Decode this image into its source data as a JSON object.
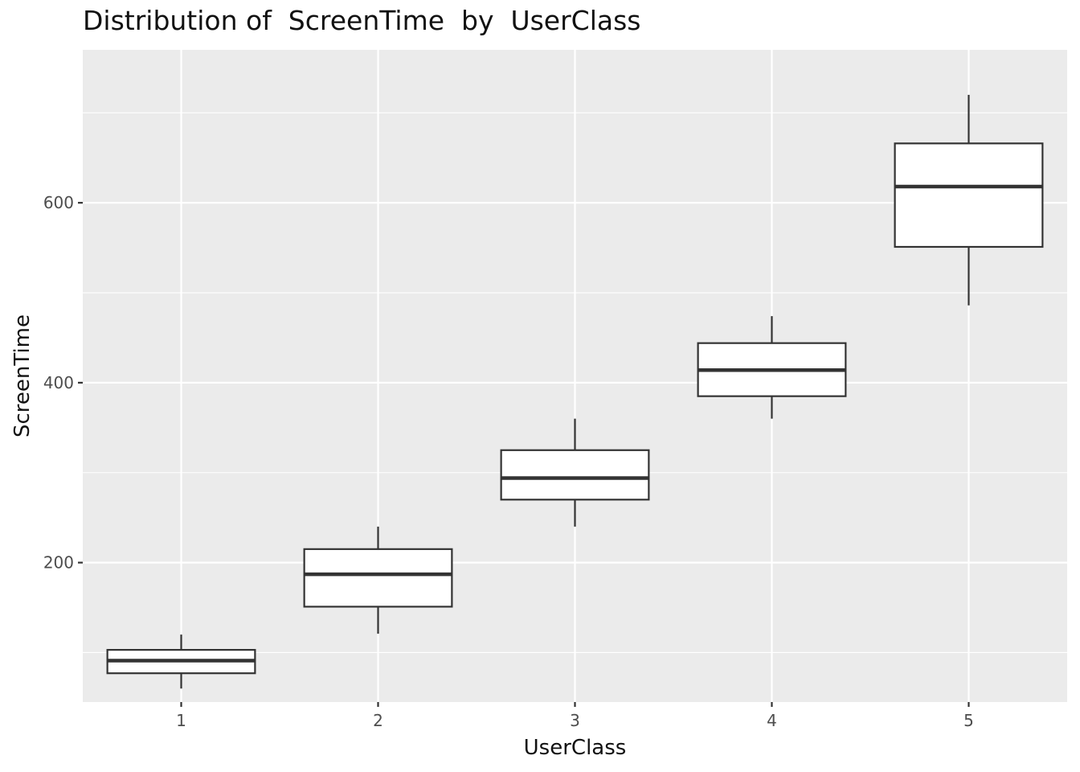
{
  "chart_data": {
    "type": "boxplot",
    "title": "Distribution of  ScreenTime  by  UserClass",
    "xlabel": "UserClass",
    "ylabel": "ScreenTime",
    "categories": [
      "1",
      "2",
      "3",
      "4",
      "5"
    ],
    "ylim": [
      45,
      770
    ],
    "yticks": [
      200,
      400,
      600
    ],
    "grid": true,
    "boxes": [
      {
        "category": "1",
        "whisker_low": 60,
        "q1": 77,
        "median": 91,
        "q3": 103,
        "whisker_high": 120
      },
      {
        "category": "2",
        "whisker_low": 121,
        "q1": 151,
        "median": 187,
        "q3": 215,
        "whisker_high": 240
      },
      {
        "category": "3",
        "whisker_low": 240,
        "q1": 270,
        "median": 294,
        "q3": 325,
        "whisker_high": 360
      },
      {
        "category": "4",
        "whisker_low": 360,
        "q1": 385,
        "median": 414,
        "q3": 444,
        "whisker_high": 474
      },
      {
        "category": "5",
        "whisker_low": 486,
        "q1": 551,
        "median": 618,
        "q3": 666,
        "whisker_high": 720
      }
    ],
    "colors": {
      "panel_background": "#ebebeb",
      "grid": "#ffffff",
      "box_fill": "#ffffff",
      "box_stroke": "#333333"
    }
  }
}
